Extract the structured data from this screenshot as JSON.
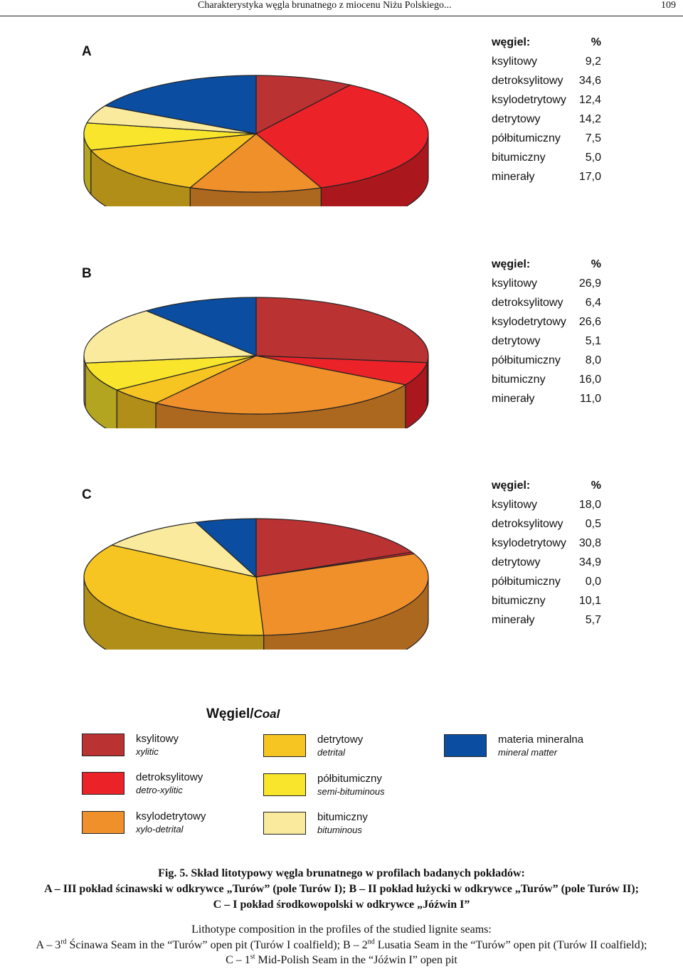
{
  "running_head": {
    "title": "Charakterystyka węgla brunatnego z miocenu Niżu Polskiego...",
    "page_number": "109"
  },
  "colors": {
    "ksylitowy": "#BA3232",
    "detroksylitowy": "#EC2229",
    "ksylodetrytowy": "#F0902B",
    "detrytowy": "#F6C522",
    "polbitumiczny": "#F8E52C",
    "bitumiczny": "#FAEA9E",
    "mineraly": "#0B4EA1"
  },
  "chart_data": [
    {
      "type": "pie",
      "panel": "A",
      "header_label": "węgiel:",
      "header_unit": "%",
      "categories": [
        "ksylitowy",
        "detroksylitowy",
        "ksylodetrytowy",
        "detrytowy",
        "półbitumiczny",
        "bitumiczny",
        "minerały"
      ],
      "values": [
        9.2,
        34.6,
        12.4,
        14.2,
        7.5,
        5.0,
        17.0
      ],
      "value_labels": [
        "9,2",
        "34,6",
        "12,4",
        "14,2",
        "7,5",
        "5,0",
        "17,0"
      ]
    },
    {
      "type": "pie",
      "panel": "B",
      "header_label": "węgiel:",
      "header_unit": "%",
      "categories": [
        "ksylitowy",
        "detroksylitowy",
        "ksylodetrytowy",
        "detrytowy",
        "półbitumiczny",
        "bitumiczny",
        "minerały"
      ],
      "values": [
        26.9,
        6.4,
        26.6,
        5.1,
        8.0,
        16.0,
        11.0
      ],
      "value_labels": [
        "26,9",
        "6,4",
        "26,6",
        "5,1",
        "8,0",
        "16,0",
        "11,0"
      ]
    },
    {
      "type": "pie",
      "panel": "C",
      "header_label": "węgiel:",
      "header_unit": "%",
      "categories": [
        "ksylitowy",
        "detroksylitowy",
        "ksylodetrytowy",
        "detrytowy",
        "półbitumiczny",
        "bitumiczny",
        "minerały"
      ],
      "values": [
        18.0,
        0.5,
        30.8,
        34.9,
        0.0,
        10.1,
        5.7
      ],
      "value_labels": [
        "18,0",
        "0,5",
        "30,8",
        "34,9",
        "0,0",
        "10,1",
        "5,7"
      ]
    }
  ],
  "legend": {
    "title_pl": "Węgiel/",
    "title_en": "Coal",
    "items": [
      {
        "key": "ksylitowy",
        "pl": "ksylitowy",
        "en": "xylitic"
      },
      {
        "key": "detroksylitowy",
        "pl": "detroksylitowy",
        "en": "detro-xylitic"
      },
      {
        "key": "ksylodetrytowy",
        "pl": "ksylodetrytowy",
        "en": "xylo-detrital"
      },
      {
        "key": "detrytowy",
        "pl": "detrytowy",
        "en": "detrital"
      },
      {
        "key": "polbitumiczny",
        "pl": "półbitumiczny",
        "en": "semi-bituminous"
      },
      {
        "key": "bitumiczny",
        "pl": "bitumiczny",
        "en": "bituminous"
      },
      {
        "key": "mineraly",
        "pl": "materia mineralna",
        "en": "mineral matter"
      }
    ]
  },
  "caption": {
    "pl_line1": "Fig. 5. Skład litotypowy węgla brunatnego w profilach badanych pokładów:",
    "pl_line2": "A – III pokład ścinawski w odkrywce „Turów” (pole Turów I); B – II pokład łużycki w odkrywce „Turów” (pole Turów II);",
    "pl_line3": "C – I pokład środkowopolski w odkrywce „Jóźwin I”",
    "en_line1": "Lithotype composition in the profiles of the studied lignite seams:",
    "en_line2_a": "A – 3",
    "en_line2_sup1": "rd",
    "en_line2_b": " Ścinawa Seam in the “Turów” open pit (Turów I coalfield); B – 2",
    "en_line2_sup2": "nd",
    "en_line2_c": " Lusatia Seam in the “Turów” open pit (Turów II coalfield);",
    "en_line3_a": "C – 1",
    "en_line3_sup": "st",
    "en_line3_b": " Mid-Polish Seam in the “Jóźwin I” open pit"
  }
}
